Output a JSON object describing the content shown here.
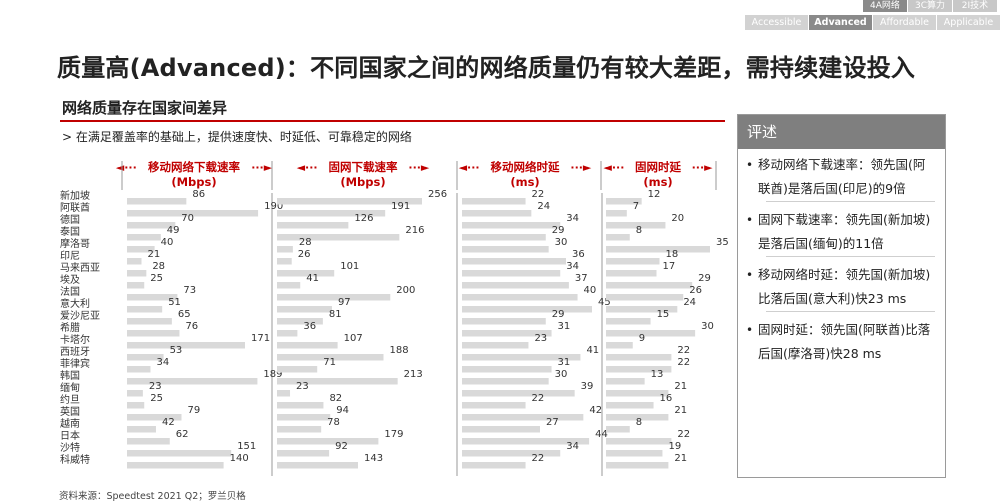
{
  "tabs": [
    "4A网络",
    "3C算力",
    "2I技术"
  ],
  "active_tab": 0,
  "subtabs": [
    "Accessible",
    "Advanced",
    "Affordable",
    "Applicable"
  ],
  "active_subtab": 1,
  "title": "质量高(Advanced)：不同国家之间的网络质量仍有较大差距，需持续建设投入",
  "section_title": "网络质量存在国家间差异",
  "subtitle": "> 在满足覆盖率的基础上，提供速度快、时延低、可靠稳定的网络",
  "colors": {
    "accent": "#c00000",
    "bar": "#d9d9d9",
    "panel_head": "#7f7f7f"
  },
  "chart_data": {
    "type": "bar",
    "orientation": "horizontal",
    "categories": [
      "新加坡",
      "阿联酋",
      "德国",
      "泰国",
      "摩洛哥",
      "印尼",
      "马来西亚",
      "埃及",
      "法国",
      "意大利",
      "爱沙尼亚",
      "希腊",
      "卡塔尔",
      "西班牙",
      "菲律宾",
      "韩国",
      "缅甸",
      "约旦",
      "英国",
      "越南",
      "日本",
      "沙特",
      "科威特"
    ],
    "series": [
      {
        "name": "移动网络下载速率",
        "unit": "(Mbps)",
        "max": 200,
        "values": [
          86,
          190,
          70,
          49,
          40,
          21,
          28,
          25,
          73,
          51,
          65,
          76,
          171,
          53,
          34,
          189,
          23,
          25,
          79,
          42,
          62,
          151,
          140
        ]
      },
      {
        "name": "固网下载速率",
        "unit": "(Mbps)",
        "max": 256,
        "values": [
          256,
          191,
          126,
          216,
          28,
          26,
          101,
          41,
          200,
          97,
          81,
          36,
          107,
          188,
          71,
          213,
          23,
          82,
          94,
          78,
          179,
          92,
          143
        ]
      },
      {
        "name": "移动网络时延",
        "unit": "(ms)",
        "max": 45,
        "values": [
          22,
          24,
          34,
          29,
          30,
          36,
          34,
          37,
          40,
          45,
          29,
          31,
          23,
          41,
          31,
          30,
          39,
          22,
          42,
          27,
          44,
          34,
          22
        ]
      },
      {
        "name": "固网时延",
        "unit": "(ms)",
        "max": 35,
        "values": [
          12,
          7,
          20,
          8,
          35,
          18,
          17,
          29,
          26,
          24,
          15,
          30,
          9,
          22,
          22,
          13,
          21,
          16,
          21,
          8,
          22,
          19,
          21
        ]
      }
    ]
  },
  "comment": {
    "title": "评述",
    "items": [
      "移动网络下载速率：领先国(阿联酋)是落后国(印尼)的9倍",
      "固网下载速率：领先国(新加坡)是落后国(缅甸)的11倍",
      "移动网络时延：领先国(新加坡)比落后国(意大利)快23 ms",
      "固网时延：领先国(阿联酋)比落后国(摩洛哥)快28 ms"
    ]
  },
  "source": "资料来源：Speedtest 2021 Q2；罗兰贝格"
}
